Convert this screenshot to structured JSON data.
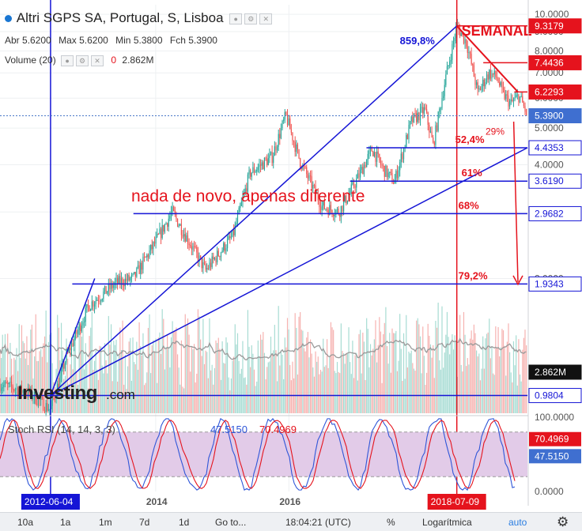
{
  "header": {
    "title": "Altri SGPS SA, Portugal, S, Lisboa",
    "ohlc": [
      {
        "label": "Abr",
        "value": "5.6200"
      },
      {
        "label": "Max",
        "value": "5.6200"
      },
      {
        "label": "Min",
        "value": "5.3800"
      },
      {
        "label": "Fch",
        "value": "5.3900"
      }
    ],
    "volume_label": "Volume (20)",
    "volume_zero": "0",
    "volume_value": "2.862M"
  },
  "chart_data": [
    {
      "type": "candlestick",
      "title": "Altri SGPS SA, Portugal, S, Lisboa",
      "scale": "log",
      "ylim": [
        0.88,
        10.6
      ],
      "price_ticks": [
        "10.0000",
        "9.0000",
        "8.0000",
        "7.0000",
        "6.0000",
        "5.0000",
        "4.0000",
        "3.0000",
        "2.0000",
        "1.0000"
      ],
      "price_tick_values": [
        10,
        9,
        8,
        7,
        6,
        5,
        4,
        3,
        2,
        1
      ],
      "x_ticks": [
        "2014",
        "2016"
      ],
      "x_tick_dates": [
        "2014-01-01",
        "2016-01-01"
      ],
      "x_range": [
        "2011-09-01",
        "2019-07-31"
      ],
      "current_price": "5.3900",
      "current_volume": "2.862M",
      "price_path": [
        [
          "2011-09-01",
          1.05
        ],
        [
          "2012-02-01",
          1.0
        ],
        [
          "2012-06-04",
          0.9
        ],
        [
          "2012-09-01",
          1.25
        ],
        [
          "2013-01-01",
          1.7
        ],
        [
          "2013-06-01",
          1.95
        ],
        [
          "2013-09-01",
          2.0
        ],
        [
          "2014-01-01",
          2.5
        ],
        [
          "2014-04-01",
          3.0
        ],
        [
          "2014-10-01",
          2.1
        ],
        [
          "2015-03-01",
          2.6
        ],
        [
          "2015-06-01",
          3.8
        ],
        [
          "2015-10-01",
          4.2
        ],
        [
          "2015-12-15",
          5.4
        ],
        [
          "2016-03-01",
          4.1
        ],
        [
          "2016-07-01",
          3.1
        ],
        [
          "2016-10-01",
          3.0
        ],
        [
          "2017-01-01",
          3.6
        ],
        [
          "2017-04-01",
          4.4
        ],
        [
          "2017-06-01",
          3.9
        ],
        [
          "2017-08-01",
          3.6
        ],
        [
          "2017-11-01",
          5.2
        ],
        [
          "2018-01-15",
          5.6
        ],
        [
          "2018-03-01",
          4.5
        ],
        [
          "2018-05-01",
          6.5
        ],
        [
          "2018-07-09",
          9.3
        ],
        [
          "2018-09-01",
          8.4
        ],
        [
          "2018-11-01",
          6.2
        ],
        [
          "2019-01-01",
          7.0
        ],
        [
          "2019-02-15",
          6.8
        ],
        [
          "2019-03-15",
          6.2
        ],
        [
          "2019-05-01",
          5.8
        ],
        [
          "2019-06-15",
          6.1
        ],
        [
          "2019-07-31",
          5.39
        ]
      ],
      "price_labels": [
        {
          "value": 9.3179,
          "text": "9.3179",
          "color": "#e5131d"
        },
        {
          "value": 7.4436,
          "text": "7.4436",
          "color": "#e5131d"
        },
        {
          "value": 6.2293,
          "text": "6.2293",
          "color": "#e5131d"
        },
        {
          "value": 4.4353,
          "text": "4.4353",
          "color": "#1515d6"
        },
        {
          "value": 3.619,
          "text": "3.6190",
          "color": "#1515d6"
        },
        {
          "value": 2.9682,
          "text": "2.9682",
          "color": "#1515d6"
        },
        {
          "value": 1.9343,
          "text": "1.9343",
          "color": "#1515d6"
        },
        {
          "value": 0.9804,
          "text": "0.9804",
          "color": "#1515d6"
        }
      ],
      "annotations": [
        {
          "text": "SEMANAL",
          "color": "#e5131d"
        },
        {
          "text": "859,8%",
          "color": "#1515d6"
        },
        {
          "text": "nada de novo, apenas diferente",
          "color": "#e5131d"
        },
        {
          "text": "52,4%",
          "color": "#e5131d"
        },
        {
          "text": "61%",
          "color": "#e5131d"
        },
        {
          "text": "68%",
          "color": "#e5131d"
        },
        {
          "text": "79,2%",
          "color": "#e5131d"
        },
        {
          "text": "29%",
          "color": "#e5131d"
        }
      ],
      "vertical_markers": [
        {
          "date": "2012-06-04",
          "label": "2012-06-04",
          "color": "#1515d6"
        },
        {
          "date": "2018-07-09",
          "label": "2018-07-09",
          "color": "#e5131d"
        }
      ]
    },
    {
      "type": "line",
      "title": "Stoch RSI (14, 14, 3, 3)",
      "series": [
        {
          "name": "47.5150",
          "color": "#2f56d8"
        },
        {
          "name": "70.4969",
          "color": "#e5131d"
        }
      ],
      "ylim": [
        0,
        100
      ],
      "ticks": [
        "100.0000",
        "50.0000",
        "0.0000"
      ],
      "tick_values": [
        100,
        50,
        0
      ],
      "band": [
        20,
        80
      ],
      "last_values": [
        "70.4969",
        "47.5150"
      ]
    }
  ],
  "watermark": "Investing.com",
  "toolbar": {
    "items": [
      "10a",
      "1a",
      "1m",
      "7d",
      "1d",
      "Go to...",
      "18:04:21 (UTC)",
      "%",
      "Logarítmica",
      "auto"
    ],
    "settings_icon": "gear-icon"
  },
  "colors": {
    "up": "#26a69a",
    "down": "#ef5350",
    "red": "#e5131d",
    "blue": "#1515d6",
    "rsi_band": "#e2cbe8"
  }
}
